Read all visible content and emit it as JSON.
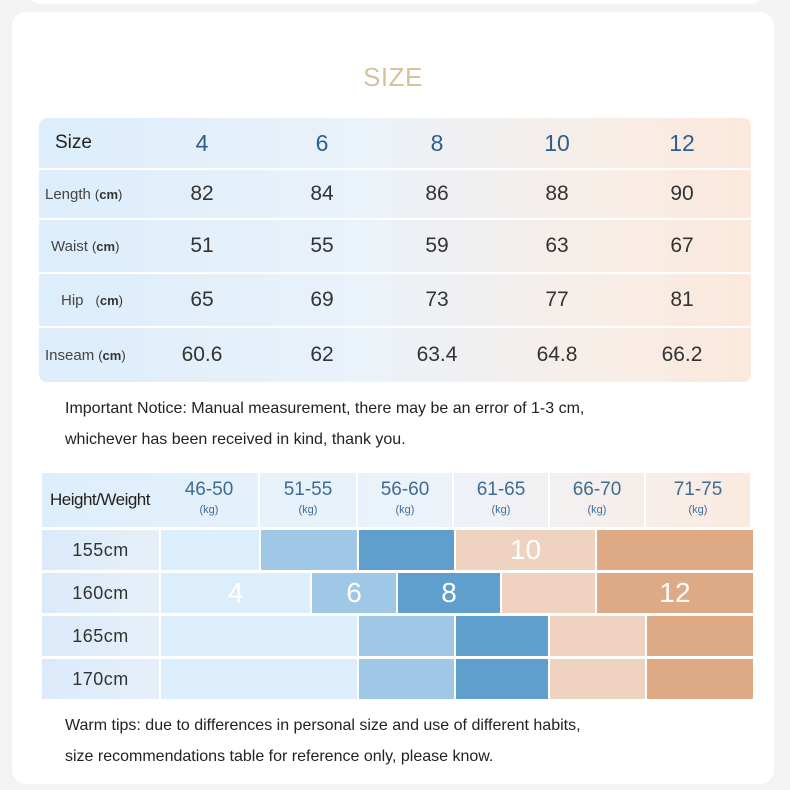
{
  "title": "SIZE",
  "size_table": {
    "header_label": "Size",
    "sizes": [
      "4",
      "6",
      "8",
      "10",
      "12"
    ],
    "unit": "cm",
    "rows": [
      {
        "label": "Length",
        "values": [
          "82",
          "84",
          "86",
          "88",
          "90"
        ]
      },
      {
        "label": "Waist",
        "values": [
          "51",
          "55",
          "59",
          "63",
          "67"
        ]
      },
      {
        "label": "Hip",
        "values": [
          "65",
          "69",
          "73",
          "77",
          "81"
        ]
      },
      {
        "label": "Inseam",
        "values": [
          "60.6",
          "62",
          "63.4",
          "64.8",
          "66.2"
        ]
      }
    ]
  },
  "notice": {
    "line1": "Important Notice: Manual measurement, there may be an error of 1-3 cm,",
    "line2": "whichever has been received in kind, thank you."
  },
  "hw_table": {
    "header_label": "Height/Weight",
    "weight_unit": "(kg)",
    "weights": [
      "46-50",
      "51-55",
      "56-60",
      "61-65",
      "66-70",
      "71-75"
    ],
    "heights": [
      "155cm",
      "160cm",
      "165cm",
      "170cm"
    ],
    "size_labels": {
      "row155": "10",
      "row160_a": "4",
      "row160_b": "6",
      "row160_c": "8",
      "row160_d": "12"
    },
    "colors": {
      "size4": "#dceefb",
      "size6": "#9fc8e6",
      "size8": "#5f9fcd",
      "size10": "#efd3c0",
      "size12": "#dea985"
    }
  },
  "tips": {
    "line1": "Warm tips: due to differences in personal size and use of different habits,",
    "line2": "size recommendations table for reference only, please know."
  }
}
